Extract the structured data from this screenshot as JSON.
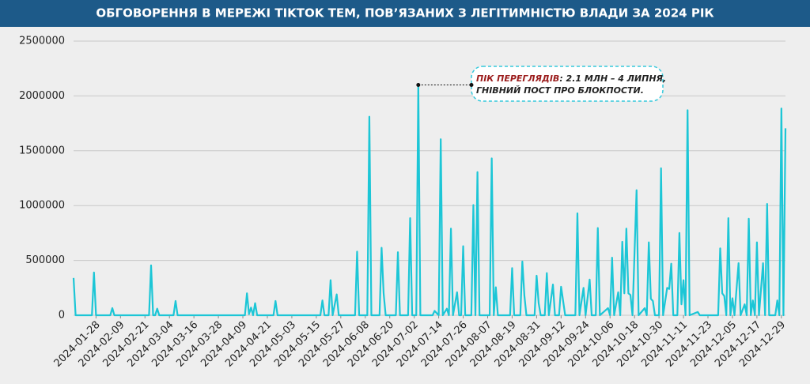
{
  "chart_data": {
    "type": "line",
    "title": "ОБГОВОРЕННЯ В МЕРЕЖІ TIKTOK ТЕМ, ПОВ’ЯЗАНИХ З ЛЕГІТИМНІСТЮ ВЛАДИ ЗА 2024 РІК",
    "color": "#1cc6d6",
    "grid": true,
    "xlim": [
      "2024-01-17",
      "2024-12-31"
    ],
    "ylim": [
      0,
      2500000
    ],
    "yticks": [
      0,
      500000,
      1000000,
      1500000,
      2000000,
      2500000
    ],
    "xticks": [
      "2024-01-28",
      "2024-02-09",
      "2024-02-21",
      "2024-03-04",
      "2024-03-16",
      "2024-03-28",
      "2024-04-09",
      "2024-04-21",
      "2024-05-03",
      "2024-05-15",
      "2024-05-27",
      "2024-06-08",
      "2024-06-20",
      "2024-07-02",
      "2024-07-14",
      "2024-07-26",
      "2024-08-07",
      "2024-08-19",
      "2024-08-31",
      "2024-09-12",
      "2024-09-24",
      "2024-10-06",
      "2024-10-18",
      "2024-10-30",
      "2024-11-11",
      "2024-11-23",
      "2024-12-05",
      "2024-12-17",
      "2024-12-29"
    ],
    "x": [
      "2024-01-17",
      "2024-01-18",
      "2024-01-26",
      "2024-01-27",
      "2024-01-28",
      "2024-02-04",
      "2024-02-05",
      "2024-02-06",
      "2024-02-23",
      "2024-02-24",
      "2024-02-25",
      "2024-02-26",
      "2024-02-27",
      "2024-02-28",
      "2024-03-06",
      "2024-03-07",
      "2024-03-08",
      "2024-04-10",
      "2024-04-11",
      "2024-04-12",
      "2024-04-13",
      "2024-04-14",
      "2024-04-15",
      "2024-04-16",
      "2024-04-24",
      "2024-04-25",
      "2024-04-26",
      "2024-05-17",
      "2024-05-18",
      "2024-05-19",
      "2024-05-21",
      "2024-05-22",
      "2024-05-23",
      "2024-05-25",
      "2024-05-26",
      "2024-06-03",
      "2024-06-04",
      "2024-06-05",
      "2024-06-09",
      "2024-06-10",
      "2024-06-11",
      "2024-06-15",
      "2024-06-16",
      "2024-06-17",
      "2024-06-18",
      "2024-06-23",
      "2024-06-24",
      "2024-06-25",
      "2024-06-29",
      "2024-06-30",
      "2024-07-01",
      "2024-07-03",
      "2024-07-04",
      "2024-07-05",
      "2024-07-11",
      "2024-07-12",
      "2024-07-14",
      "2024-07-15",
      "2024-07-16",
      "2024-07-18",
      "2024-07-19",
      "2024-07-20",
      "2024-07-21",
      "2024-07-23",
      "2024-07-24",
      "2024-07-25",
      "2024-07-26",
      "2024-07-27",
      "2024-07-30",
      "2024-07-31",
      "2024-08-01",
      "2024-08-02",
      "2024-08-03",
      "2024-08-08",
      "2024-08-09",
      "2024-08-10",
      "2024-08-11",
      "2024-08-12",
      "2024-08-18",
      "2024-08-19",
      "2024-08-20",
      "2024-08-23",
      "2024-08-24",
      "2024-08-25",
      "2024-08-26",
      "2024-08-30",
      "2024-08-31",
      "2024-09-01",
      "2024-09-02",
      "2024-09-04",
      "2024-09-05",
      "2024-09-06",
      "2024-09-08",
      "2024-09-09",
      "2024-09-11",
      "2024-09-12",
      "2024-09-13",
      "2024-09-14",
      "2024-09-19",
      "2024-09-20",
      "2024-09-21",
      "2024-09-23",
      "2024-09-24",
      "2024-09-26",
      "2024-09-27",
      "2024-09-29",
      "2024-09-30",
      "2024-10-01",
      "2024-10-05",
      "2024-10-06",
      "2024-10-07",
      "2024-10-08",
      "2024-10-10",
      "2024-10-11",
      "2024-10-12",
      "2024-10-13",
      "2024-10-14",
      "2024-10-15",
      "2024-10-16",
      "2024-10-17",
      "2024-10-19",
      "2024-10-20",
      "2024-10-23",
      "2024-10-24",
      "2024-10-25",
      "2024-10-26",
      "2024-10-27",
      "2024-10-28",
      "2024-10-30",
      "2024-10-31",
      "2024-11-01",
      "2024-11-03",
      "2024-11-04",
      "2024-11-05",
      "2024-11-06",
      "2024-11-08",
      "2024-11-09",
      "2024-11-10",
      "2024-11-11",
      "2024-11-12",
      "2024-11-13",
      "2024-11-14",
      "2024-11-18",
      "2024-11-19",
      "2024-11-28",
      "2024-11-29",
      "2024-11-30",
      "2024-12-01",
      "2024-12-02",
      "2024-12-03",
      "2024-12-04",
      "2024-12-05",
      "2024-12-06",
      "2024-12-08",
      "2024-12-09",
      "2024-12-11",
      "2024-12-12",
      "2024-12-13",
      "2024-12-14",
      "2024-12-15",
      "2024-12-16",
      "2024-12-17",
      "2024-12-18",
      "2024-12-20",
      "2024-12-21",
      "2024-12-22",
      "2024-12-23",
      "2024-12-26",
      "2024-12-27",
      "2024-12-28",
      "2024-12-29",
      "2024-12-30",
      "2024-12-31"
    ],
    "values": [
      340000,
      0,
      0,
      390000,
      0,
      0,
      65000,
      0,
      0,
      455000,
      0,
      0,
      60000,
      0,
      0,
      130000,
      0,
      0,
      200000,
      10000,
      70000,
      0,
      110000,
      0,
      0,
      130000,
      0,
      0,
      135000,
      0,
      0,
      320000,
      0,
      190000,
      0,
      0,
      580000,
      0,
      0,
      1810000,
      0,
      0,
      615000,
      200000,
      0,
      0,
      575000,
      0,
      0,
      885000,
      0,
      0,
      2100000,
      0,
      0,
      40000,
      0,
      1605000,
      0,
      60000,
      0,
      790000,
      0,
      210000,
      0,
      0,
      630000,
      0,
      0,
      1005000,
      0,
      1305000,
      0,
      0,
      1430000,
      0,
      255000,
      0,
      0,
      430000,
      0,
      0,
      490000,
      180000,
      0,
      0,
      360000,
      110000,
      0,
      0,
      385000,
      0,
      280000,
      0,
      0,
      260000,
      130000,
      0,
      0,
      930000,
      0,
      250000,
      0,
      325000,
      0,
      0,
      795000,
      0,
      65000,
      0,
      525000,
      0,
      210000,
      0,
      670000,
      200000,
      790000,
      200000,
      185000,
      0,
      1140000,
      0,
      65000,
      0,
      665000,
      150000,
      130000,
      0,
      0,
      1340000,
      0,
      250000,
      240000,
      470000,
      0,
      0,
      750000,
      100000,
      320000,
      0,
      1870000,
      0,
      30000,
      0,
      0,
      610000,
      200000,
      175000,
      0,
      885000,
      0,
      155000,
      0,
      475000,
      0,
      100000,
      0,
      880000,
      0,
      135000,
      0,
      665000,
      0,
      475000,
      0,
      1015000,
      0,
      0,
      135000,
      0,
      1885000,
      0,
      1705000
    ],
    "annotation": {
      "date": "2024-07-04",
      "label": "ПІК ПЕРЕГЛЯДІВ",
      "line1": ": 2.1 МЛН – 4 ЛИПНЯ,",
      "line2": "ГНІВНИЙ ПОСТ ПРО БЛОКПОСТИ."
    }
  }
}
